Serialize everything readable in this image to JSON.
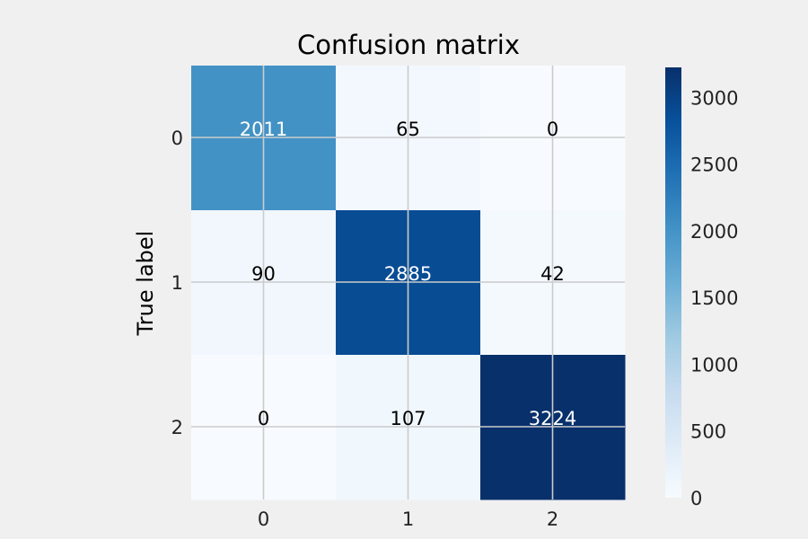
{
  "chart_data": {
    "type": "heatmap",
    "title": "Confusion matrix",
    "ylabel": "True label",
    "xlabel": "",
    "x_categories": [
      "0",
      "1",
      "2"
    ],
    "y_categories": [
      "0",
      "1",
      "2"
    ],
    "values": [
      [
        2011,
        65,
        0
      ],
      [
        90,
        2885,
        42
      ],
      [
        0,
        107,
        3224
      ]
    ],
    "colormap": "Blues",
    "vmin": 0,
    "vmax": 3224,
    "colorbar_ticks": [
      0,
      500,
      1000,
      1500,
      2000,
      2500,
      3000
    ],
    "grid": true,
    "colors": {
      "background": "#f0f0f0",
      "grid": "#cbcbcb",
      "light_text": "#ffffff",
      "dark_text": "#000000"
    }
  }
}
